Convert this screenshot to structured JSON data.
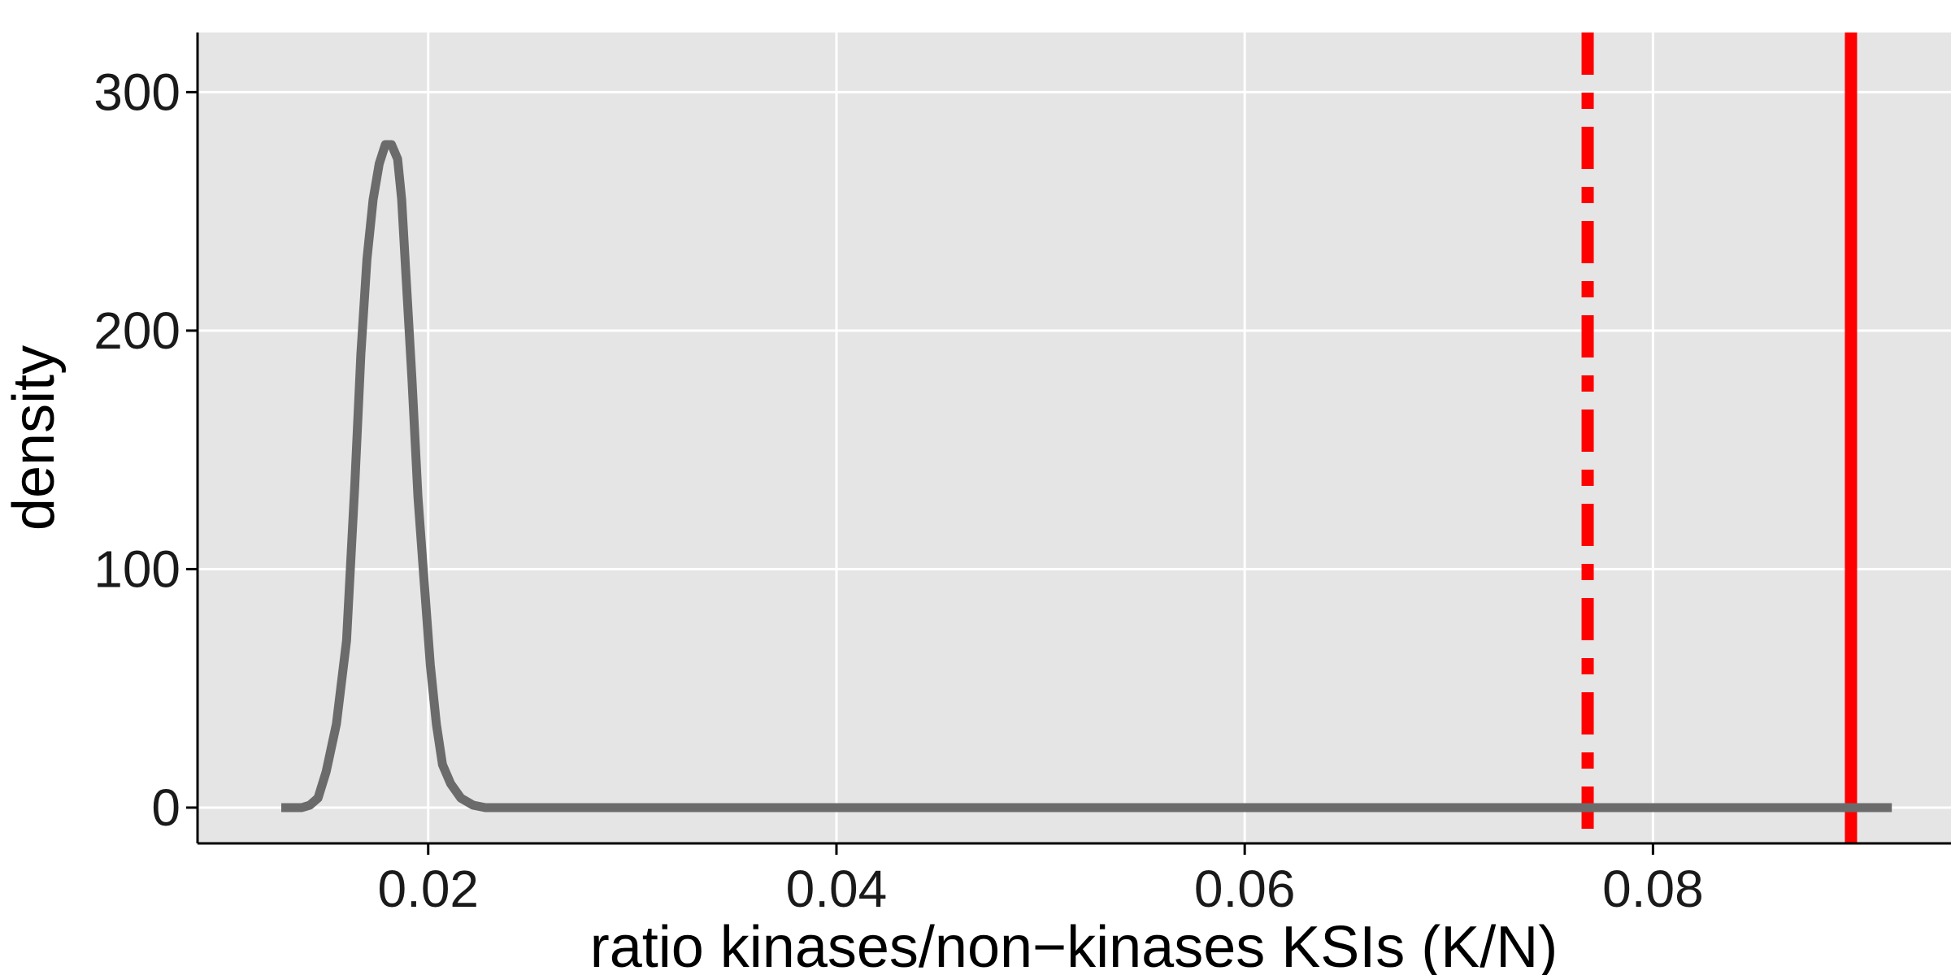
{
  "chart_data": {
    "type": "line",
    "title": "",
    "xlabel": "ratio kinases/non−kinases KSIs (K/N)",
    "ylabel": "density",
    "xlim": [
      0.0087,
      0.0946
    ],
    "ylim": [
      -15,
      325
    ],
    "x_ticks": [
      {
        "value": 0.02,
        "label": "0.02"
      },
      {
        "value": 0.04,
        "label": "0.04"
      },
      {
        "value": 0.06,
        "label": "0.06"
      },
      {
        "value": 0.08,
        "label": "0.08"
      }
    ],
    "y_ticks": [
      {
        "value": 0,
        "label": "0"
      },
      {
        "value": 100,
        "label": "100"
      },
      {
        "value": 200,
        "label": "200"
      },
      {
        "value": 300,
        "label": "300"
      }
    ],
    "grid": true,
    "legend": "none",
    "series": [
      {
        "color": "#6b6b6b",
        "x": [
          0.0128,
          0.0138,
          0.0142,
          0.0146,
          0.015,
          0.0155,
          0.016,
          0.0164,
          0.0167,
          0.017,
          0.0173,
          0.0176,
          0.0179,
          0.0182,
          0.0185,
          0.0187,
          0.0189,
          0.0192,
          0.0195,
          0.0198,
          0.0201,
          0.0204,
          0.0207,
          0.0211,
          0.0216,
          0.0222,
          0.0228,
          0.024,
          0.03,
          0.04,
          0.05,
          0.06,
          0.07,
          0.08,
          0.09,
          0.0917
        ],
        "y": [
          0,
          0,
          1,
          4,
          15,
          35,
          70,
          135,
          190,
          230,
          255,
          270,
          278,
          278,
          272,
          255,
          225,
          180,
          130,
          95,
          60,
          35,
          18,
          10,
          4,
          1,
          0,
          0,
          0,
          0,
          0,
          0,
          0,
          0,
          0,
          0
        ]
      }
    ],
    "vlines": [
      {
        "x": 0.0768,
        "style": "dashdot",
        "color": "#ff0000"
      },
      {
        "x": 0.0897,
        "style": "solid",
        "color": "#ff0000"
      }
    ],
    "colors": {
      "panel_background": "#e5e5e5",
      "grid": "#ffffff",
      "axis": "#000000"
    }
  }
}
